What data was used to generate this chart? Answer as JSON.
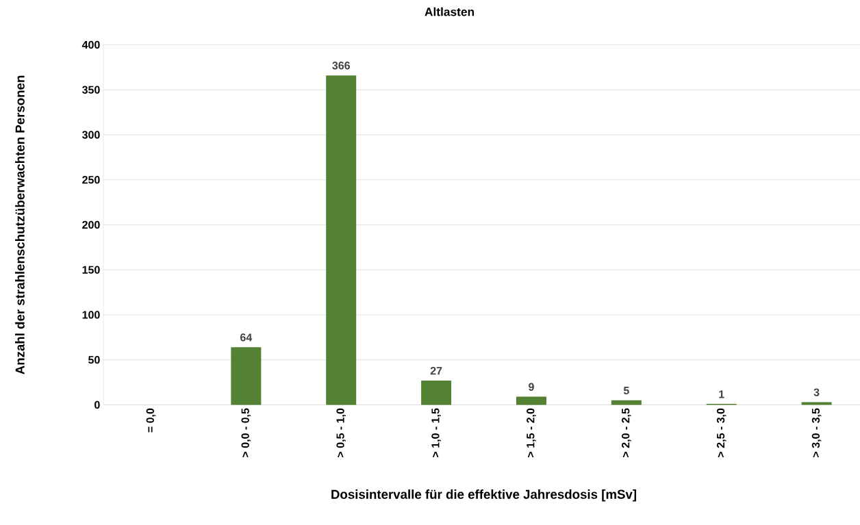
{
  "chart_data": {
    "type": "bar",
    "title": "Altlasten",
    "xlabel": "Dosisintervalle für die effektive Jahresdosis [mSv]",
    "ylabel": "Anzahl der strahlenschutzüberwachten Personen",
    "categories": [
      "= 0,0",
      "> 0,0 - 0,5",
      "> 0,5 - 1,0",
      "> 1,0 - 1,5",
      "> 1,5 - 2,0",
      "> 2,0 - 2,5",
      "> 2,5 - 3,0",
      "> 3,0 - 3,5"
    ],
    "values": [
      null,
      64,
      366,
      27,
      9,
      5,
      1,
      3
    ],
    "color": "#548235",
    "ylim": [
      0,
      400
    ],
    "yticks": [
      0,
      50,
      100,
      150,
      200,
      250,
      300,
      350,
      400
    ],
    "grid": "y",
    "data_labels": true
  }
}
